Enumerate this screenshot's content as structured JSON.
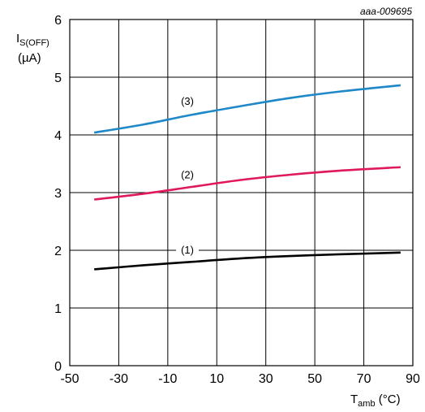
{
  "chart_data": {
    "type": "line",
    "reference": "aaa-009695",
    "ylabel_main": "I",
    "ylabel_sub": "S(OFF)",
    "ylabel_unit": "(µA)",
    "xlabel_main": "T",
    "xlabel_sub": "amb",
    "xlabel_unit": " (°C)",
    "xlim": [
      -50,
      90
    ],
    "ylim": [
      0,
      6
    ],
    "xticks": [
      "-50",
      "-30",
      "-10",
      "10",
      "30",
      "50",
      "70",
      "90"
    ],
    "yticks": [
      "0",
      "1",
      "2",
      "3",
      "4",
      "5",
      "6"
    ],
    "grid": true,
    "series": [
      {
        "name": "(1)",
        "color": "#000000",
        "label_at": [
          -2,
          2.0
        ],
        "x": [
          -40,
          -20,
          0,
          20,
          40,
          60,
          85
        ],
        "y": [
          1.67,
          1.74,
          1.8,
          1.86,
          1.9,
          1.93,
          1.96
        ]
      },
      {
        "name": "(2)",
        "color": "#e0185c",
        "label_at": [
          -2,
          3.3
        ],
        "x": [
          -40,
          -20,
          0,
          20,
          40,
          60,
          85
        ],
        "y": [
          2.88,
          2.98,
          3.1,
          3.22,
          3.31,
          3.38,
          3.44
        ]
      },
      {
        "name": "(3)",
        "color": "#1f88c8",
        "label_at": [
          -2,
          4.58
        ],
        "x": [
          -40,
          -20,
          0,
          20,
          40,
          60,
          85
        ],
        "y": [
          4.04,
          4.18,
          4.35,
          4.5,
          4.64,
          4.75,
          4.86
        ]
      }
    ]
  }
}
